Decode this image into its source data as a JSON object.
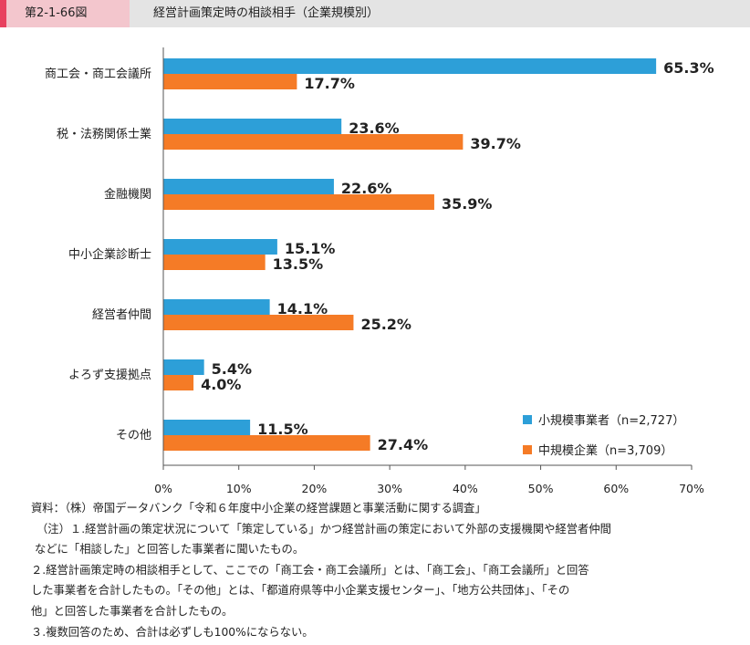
{
  "figure": {
    "number": "第2-1-66図",
    "title": "経営計画策定時の相談相手（企業規模別）"
  },
  "colors": {
    "small": "#2d9fd8",
    "medium": "#f57b26"
  },
  "chart_data": {
    "type": "bar",
    "orientation": "horizontal",
    "categories": [
      "商工会・商工会議所",
      "税・法務関係士業",
      "金融機関",
      "中小企業診断士",
      "経営者仲間",
      "よろず支援拠点",
      "その他"
    ],
    "series": [
      {
        "name": "小規模事業者（n=2,727）",
        "values": [
          65.3,
          23.6,
          22.6,
          15.1,
          14.1,
          5.4,
          11.5
        ],
        "labels": [
          "65.3%",
          "23.6%",
          "22.6%",
          "15.1%",
          "14.1%",
          "5.4%",
          "11.5%"
        ]
      },
      {
        "name": "中規模企業（n=3,709）",
        "values": [
          17.7,
          39.7,
          35.9,
          13.5,
          25.2,
          4.0,
          27.4
        ],
        "labels": [
          "17.7%",
          "39.7%",
          "35.9%",
          "13.5%",
          "25.2%",
          "4.0%",
          "27.4%"
        ]
      }
    ],
    "xlim": [
      0,
      70
    ],
    "xticks": [
      "0%",
      "10%",
      "20%",
      "30%",
      "40%",
      "50%",
      "60%",
      "70%"
    ],
    "grid": false,
    "legend_position": "bottom-right"
  },
  "notes": [
    "資料：（株）帝国データバンク「令和６年度中小企業の経営課題と事業活動に関する調査」",
    "（注）１.経営計画の策定状況について「策定している」かつ経営計画の策定において外部の支援機関や経営者仲間",
    "などに「相談した」と回答した事業者に聞いたもの。",
    "２.経営計画策定時の相談相手として、ここでの「商工会・商工会議所」とは、「商工会」、「商工会議所」と回答",
    "した事業者を合計したもの。「その他」とは、「都道府県等中小企業支援センター」、「地方公共団体」、「その",
    "他」と回答した事業者を合計したもの。",
    "３.複数回答のため、合計は必ずしも100%にならない。"
  ]
}
